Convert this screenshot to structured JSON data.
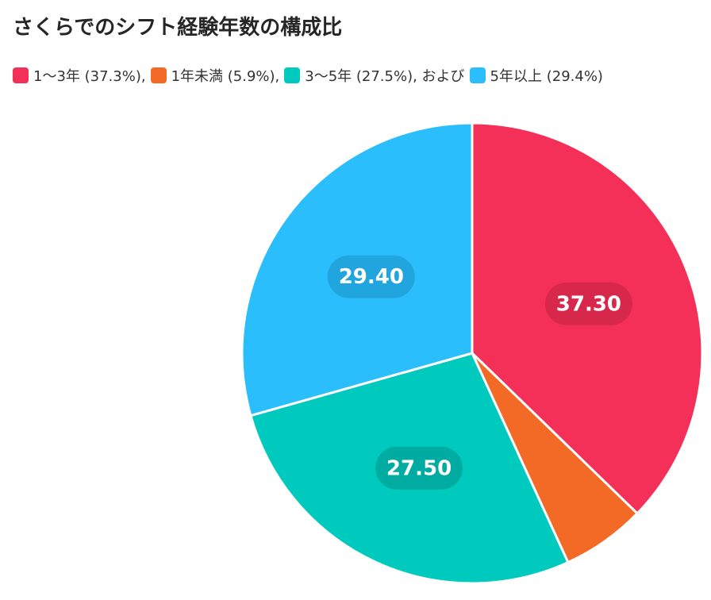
{
  "chart_data": {
    "type": "pie",
    "title": "さくらでのシフト経験年数の構成比",
    "legend_position": "top-left",
    "slices": [
      {
        "name": "1〜3年",
        "legend_text": "1〜3年 (37.3%),",
        "value": 37.3,
        "label": "37.30",
        "color": "#F43059",
        "label_bg": "#D42849"
      },
      {
        "name": "1年未満",
        "legend_text": "1年未満 (5.9%),",
        "value": 5.9,
        "label": "",
        "color": "#F26A25",
        "label_bg": "#D25A1E"
      },
      {
        "name": "3〜5年",
        "legend_text": "3〜5年 (27.5%), および",
        "value": 27.5,
        "label": "27.50",
        "color": "#00C9BE",
        "label_bg": "#00A89F"
      },
      {
        "name": "5年以上",
        "legend_text": "5年以上 (29.4%)",
        "value": 29.4,
        "label": "29.40",
        "color": "#2ABEFD",
        "label_bg": "#20A2DA"
      }
    ]
  }
}
